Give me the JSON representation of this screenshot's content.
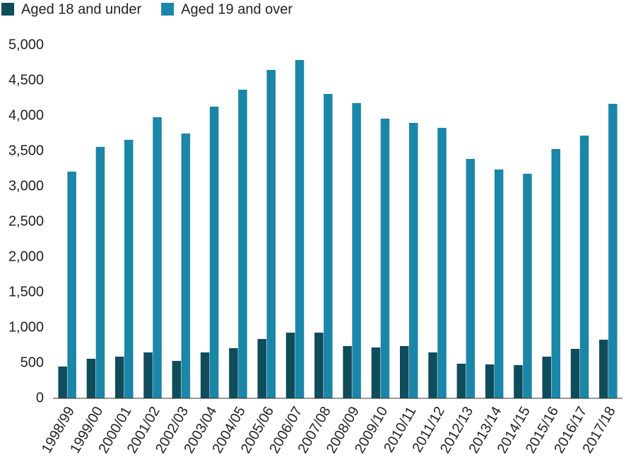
{
  "chart_data": {
    "type": "bar",
    "categories": [
      "1998/99",
      "1999/00",
      "2000/01",
      "2001/02",
      "2002/03",
      "2003/04",
      "2004/05",
      "2005/06",
      "2006/07",
      "2007/08",
      "2008/09",
      "2009/10",
      "2010/11",
      "2011/12",
      "2012/13",
      "2013/14",
      "2014/15",
      "2015/16",
      "2016/17",
      "2017/18"
    ],
    "series": [
      {
        "name": "Aged 18 and under",
        "color": "#0f4c5c",
        "values": [
          450,
          560,
          590,
          650,
          530,
          650,
          710,
          840,
          930,
          930,
          740,
          720,
          740,
          650,
          490,
          480,
          470,
          590,
          700,
          830
        ]
      },
      {
        "name": "Aged 19 and over",
        "color": "#1a86a8",
        "values": [
          3210,
          3560,
          3660,
          3980,
          3750,
          4130,
          4370,
          4650,
          4790,
          4310,
          4180,
          3960,
          3900,
          3830,
          3390,
          3240,
          3180,
          3530,
          3720,
          4170
        ]
      }
    ],
    "ylim": [
      0,
      5000
    ],
    "yticks": [
      0,
      500,
      {
        "value": 1000,
        "label": "1,000"
      },
      {
        "value": 1500,
        "label": "1,500"
      },
      {
        "value": 2000,
        "label": "2,000"
      },
      {
        "value": 2500,
        "label": "2,500"
      },
      {
        "value": 3000,
        "label": "3,000"
      },
      {
        "value": 3500,
        "label": "3,500"
      },
      {
        "value": 4000,
        "label": "4,000"
      },
      {
        "value": 4500,
        "label": "4,500"
      },
      {
        "value": 5000,
        "label": "5,000"
      }
    ],
    "grid": false,
    "legend": "top-left"
  }
}
